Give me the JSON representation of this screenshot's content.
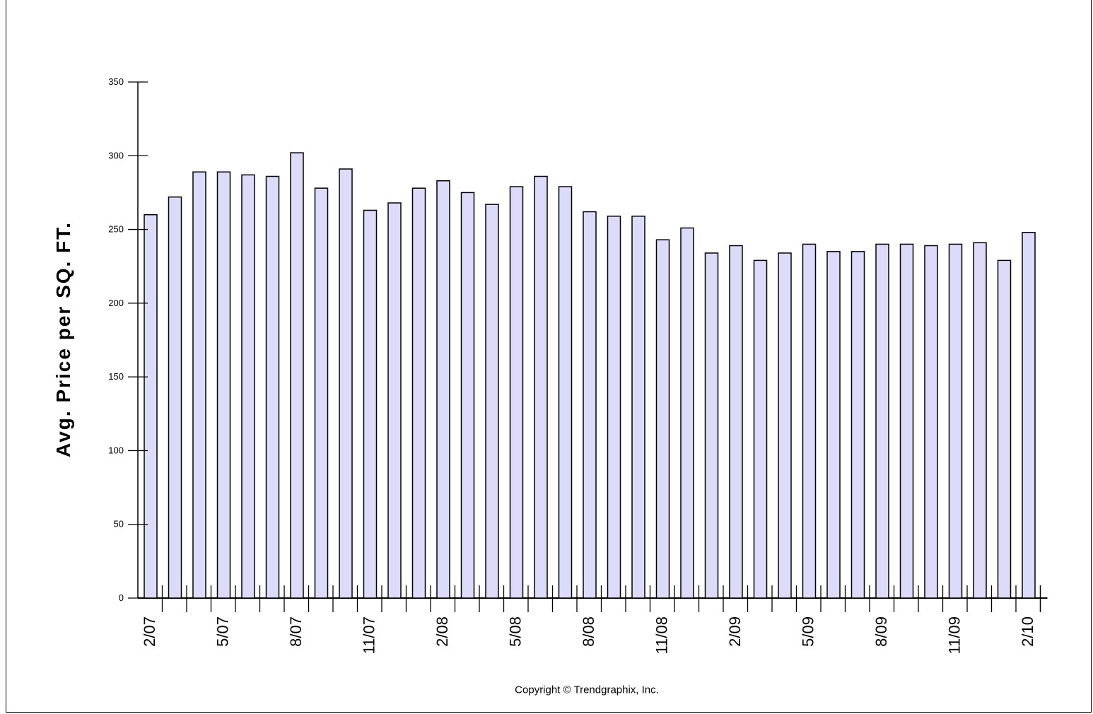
{
  "chart_data": {
    "type": "bar",
    "title": "",
    "xlabel": "",
    "ylabel": "Avg. Price per SQ. FT.",
    "ylim": [
      0,
      350
    ],
    "yticks": [
      "0",
      "50",
      "100",
      "150",
      "200",
      "250",
      "300",
      "350"
    ],
    "grid": false,
    "categories": [
      "2/07",
      "3/07",
      "4/07",
      "5/07",
      "6/07",
      "7/07",
      "8/07",
      "9/07",
      "10/07",
      "11/07",
      "12/07",
      "1/08",
      "2/08",
      "3/08",
      "4/08",
      "5/08",
      "6/08",
      "7/08",
      "8/08",
      "9/08",
      "10/08",
      "11/08",
      "12/08",
      "1/09",
      "2/09",
      "3/09",
      "4/09",
      "5/09",
      "6/09",
      "7/09",
      "8/09",
      "9/09",
      "10/09",
      "11/09",
      "12/09",
      "1/10",
      "2/10"
    ],
    "xtick_labels": [
      "2/07",
      "",
      "",
      "5/07",
      "",
      "",
      "8/07",
      "",
      "",
      "11/07",
      "",
      "",
      "2/08",
      "",
      "",
      "5/08",
      "",
      "",
      "8/08",
      "",
      "",
      "11/08",
      "",
      "",
      "2/09",
      "",
      "",
      "5/09",
      "",
      "",
      "8/09",
      "",
      "",
      "11/09",
      "",
      "",
      "2/10"
    ],
    "values": [
      260,
      272,
      289,
      289,
      287,
      286,
      302,
      278,
      291,
      263,
      268,
      278,
      283,
      275,
      267,
      279,
      286,
      279,
      262,
      259,
      259,
      243,
      251,
      234,
      239,
      229,
      234,
      240,
      235,
      235,
      240,
      240,
      239,
      240,
      241,
      229,
      248
    ],
    "bar_fill": "#dcdcfa",
    "bar_stroke": "#000000"
  },
  "footer": {
    "copyright": "Copyright © Trendgraphix, Inc."
  }
}
